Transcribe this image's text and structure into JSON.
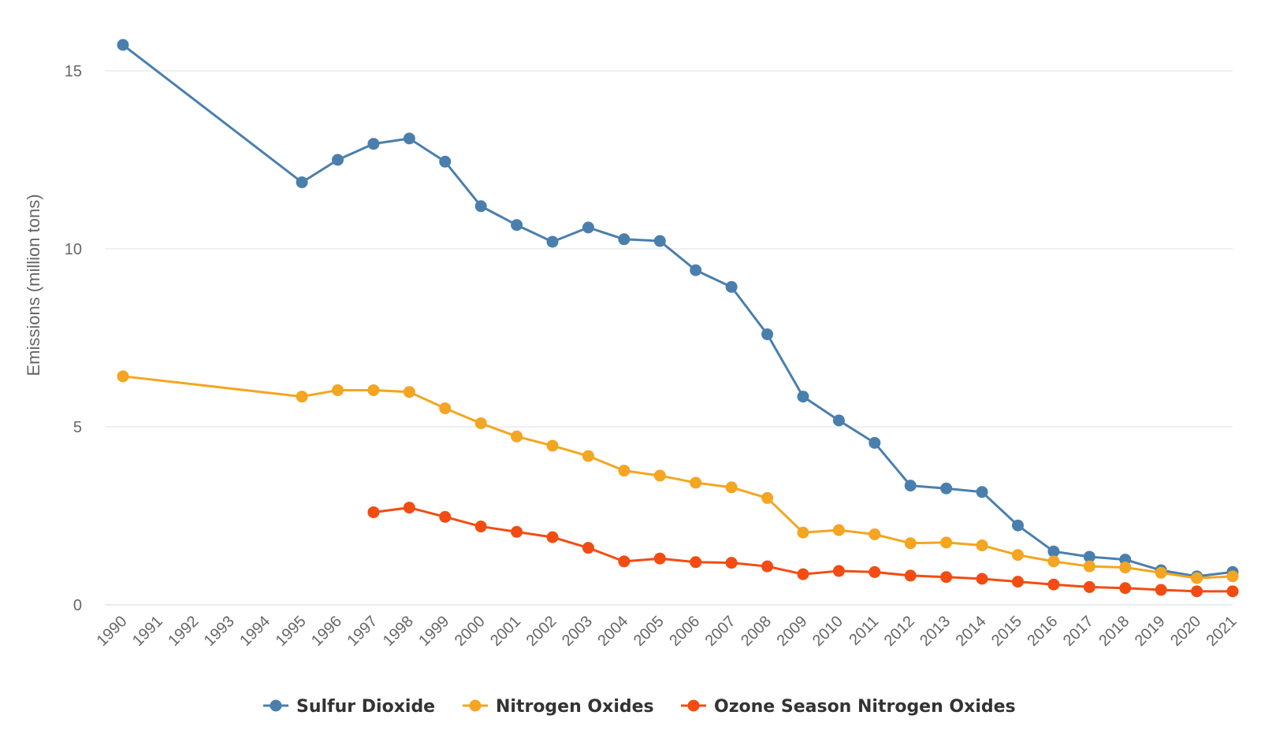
{
  "chart_data": {
    "type": "line",
    "title": "",
    "xlabel": "",
    "ylabel": "Emissions (million tons)",
    "ylim": [
      0,
      16
    ],
    "yticks": [
      0,
      5,
      10,
      15
    ],
    "grid": true,
    "legend": "bottom-center",
    "categories": [
      "1990",
      "1991",
      "1992",
      "1993",
      "1994",
      "1995",
      "1996",
      "1997",
      "1998",
      "1999",
      "2000",
      "2001",
      "2002",
      "2003",
      "2004",
      "2005",
      "2006",
      "2007",
      "2008",
      "2009",
      "2010",
      "2011",
      "2012",
      "2013",
      "2014",
      "2015",
      "2016",
      "2017",
      "2018",
      "2019",
      "2020",
      "2021"
    ],
    "series": [
      {
        "name": "Sulfur Dioxide",
        "color": "#4a7fad",
        "values": [
          15.73,
          null,
          null,
          null,
          null,
          11.87,
          12.5,
          12.95,
          13.1,
          12.45,
          11.2,
          10.67,
          10.2,
          10.6,
          10.27,
          10.22,
          9.4,
          8.93,
          7.6,
          5.85,
          5.18,
          4.55,
          3.35,
          3.27,
          3.17,
          2.23,
          1.5,
          1.35,
          1.27,
          0.97,
          0.8,
          0.92
        ]
      },
      {
        "name": "Nitrogen Oxides",
        "color": "#f4a521",
        "values": [
          6.42,
          null,
          null,
          null,
          null,
          5.85,
          6.03,
          6.03,
          5.98,
          5.52,
          5.1,
          4.73,
          4.47,
          4.18,
          3.77,
          3.63,
          3.43,
          3.3,
          3.0,
          2.03,
          2.1,
          1.98,
          1.73,
          1.75,
          1.67,
          1.4,
          1.22,
          1.08,
          1.05,
          0.9,
          0.75,
          0.8
        ]
      },
      {
        "name": "Ozone Season Nitrogen Oxides",
        "color": "#f24c13",
        "values": [
          null,
          null,
          null,
          null,
          null,
          null,
          null,
          2.6,
          2.73,
          2.47,
          2.2,
          2.05,
          1.9,
          1.6,
          1.22,
          1.3,
          1.2,
          1.18,
          1.08,
          0.86,
          0.95,
          0.92,
          0.82,
          0.78,
          0.73,
          0.65,
          0.57,
          0.5,
          0.47,
          0.42,
          0.38,
          0.38
        ]
      }
    ]
  }
}
